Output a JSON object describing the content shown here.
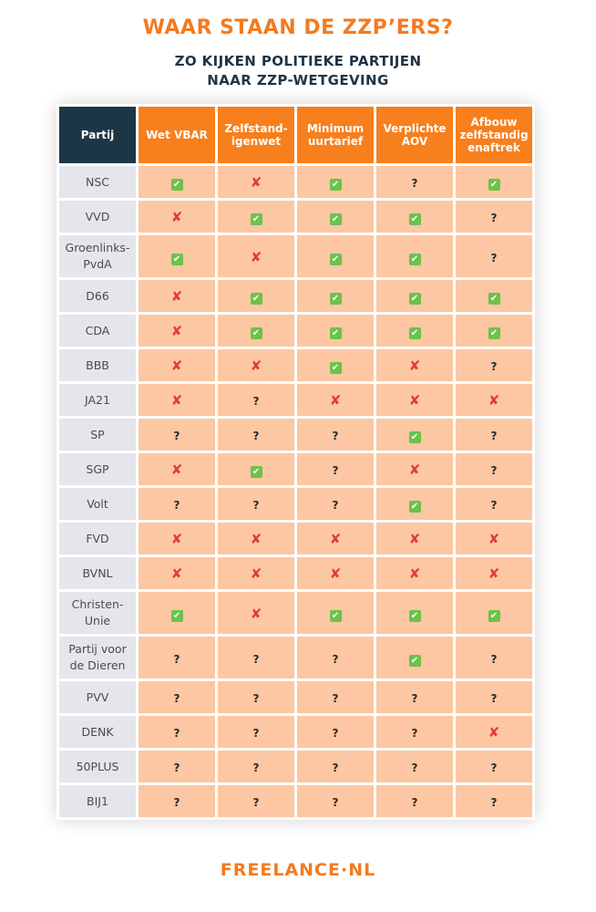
{
  "header": {
    "title": "WAAR STAAN DE ZZP’ERS?",
    "subtitle": [
      "ZO KIJKEN POLITIEKE PARTIJEN",
      "NAAR ZZP-WETGEVING"
    ]
  },
  "table": {
    "columns": [
      [
        "Partij"
      ],
      [
        "Wet VBAR"
      ],
      [
        "Zelfstand-",
        "igenwet"
      ],
      [
        "Minimum",
        "uurtarief"
      ],
      [
        "Verplichte",
        "AOV"
      ],
      [
        "Afbouw",
        "zelfstandig",
        "enaftrek"
      ]
    ],
    "rows": [
      {
        "party": [
          "NSC"
        ],
        "cells": [
          "✔",
          "✘",
          "✔",
          "?",
          "✔"
        ]
      },
      {
        "party": [
          "VVD"
        ],
        "cells": [
          "✘",
          "✔",
          "✔",
          "✔",
          "?"
        ]
      },
      {
        "party": [
          "Groenlinks-",
          "PvdA"
        ],
        "cells": [
          "✔",
          "✘",
          "✔",
          "✔",
          "?"
        ]
      },
      {
        "party": [
          "D66"
        ],
        "cells": [
          "✘",
          "✔",
          "✔",
          "✔",
          "✔"
        ]
      },
      {
        "party": [
          "CDA"
        ],
        "cells": [
          "✘",
          "✔",
          "✔",
          "✔",
          "✔"
        ]
      },
      {
        "party": [
          "BBB"
        ],
        "cells": [
          "✘",
          "✘",
          "✔",
          "✘",
          "?"
        ]
      },
      {
        "party": [
          "JA21"
        ],
        "cells": [
          "✘",
          "?",
          "✘",
          "✘",
          "✘"
        ]
      },
      {
        "party": [
          "SP"
        ],
        "cells": [
          "?",
          "?",
          "?",
          "✔",
          "?"
        ]
      },
      {
        "party": [
          "SGP"
        ],
        "cells": [
          "✘",
          "✔",
          "?",
          "✘",
          "?"
        ]
      },
      {
        "party": [
          "Volt"
        ],
        "cells": [
          "?",
          "?",
          "?",
          "✔",
          "?"
        ]
      },
      {
        "party": [
          "FVD"
        ],
        "cells": [
          "✘",
          "✘",
          "✘",
          "✘",
          "✘"
        ]
      },
      {
        "party": [
          "BVNL"
        ],
        "cells": [
          "✘",
          "✘",
          "✘",
          "✘",
          "✘"
        ]
      },
      {
        "party": [
          "Christen-",
          "Unie"
        ],
        "cells": [
          "✔",
          "✘",
          "✔",
          "✔",
          "✔"
        ]
      },
      {
        "party": [
          "Partij voor",
          "de Dieren"
        ],
        "cells": [
          "?",
          "?",
          "?",
          "✔",
          "?"
        ]
      },
      {
        "party": [
          "PVV"
        ],
        "cells": [
          "?",
          "?",
          "?",
          "?",
          "?"
        ]
      },
      {
        "party": [
          "DENK"
        ],
        "cells": [
          "?",
          "?",
          "?",
          "?",
          "✘"
        ]
      },
      {
        "party": [
          "50PLUS"
        ],
        "cells": [
          "?",
          "?",
          "?",
          "?",
          "?"
        ]
      },
      {
        "party": [
          "BIJ1"
        ],
        "cells": [
          "?",
          "?",
          "?",
          "?",
          "?"
        ]
      }
    ]
  },
  "footer": {
    "brand": "FREELANCE·NL"
  }
}
